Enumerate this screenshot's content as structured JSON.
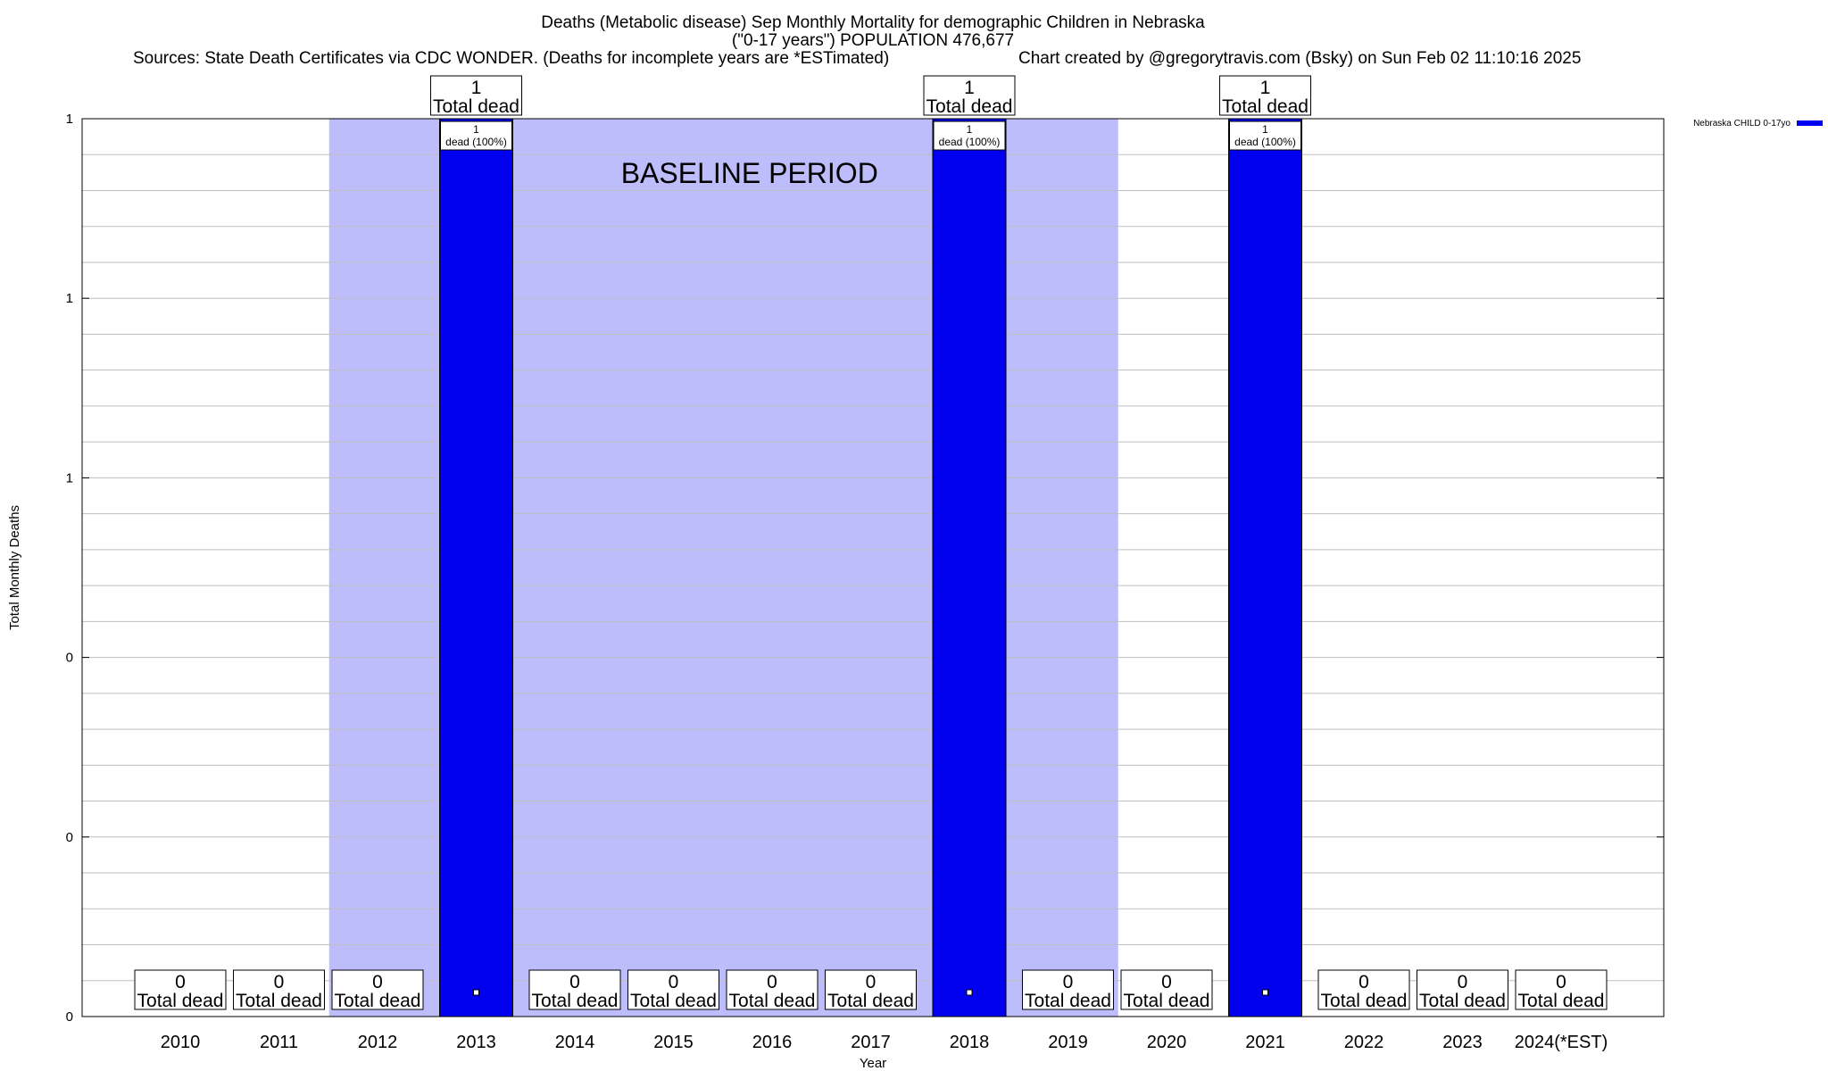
{
  "chart_data": {
    "type": "bar",
    "title_lines": [
      "Deaths (Metabolic disease) Sep Monthly Mortality for demographic Children in Nebraska",
      "(\"0-17 years\") POPULATION 476,677"
    ],
    "sources": "Sources: State Death Certificates via CDC WONDER. (Deaths for incomplete years are *ESTimated)",
    "credit": "Chart created by @gregorytravis.com (Bsky) on Sun Feb 02 11:10:16 2025",
    "xlabel": "Year",
    "ylabel": "Total Monthly Deaths",
    "categories": [
      "2010",
      "2011",
      "2012",
      "2013",
      "2014",
      "2015",
      "2016",
      "2017",
      "2018",
      "2019",
      "2020",
      "2021",
      "2022",
      "2023",
      "2024(*EST)"
    ],
    "series": [
      {
        "name": "Nebraska CHILD 0-17yo",
        "color": "#0000ee",
        "values": [
          0,
          0,
          0,
          1,
          0,
          0,
          0,
          0,
          1,
          0,
          0,
          1,
          0,
          0,
          0
        ]
      }
    ],
    "total_labels": [
      [
        "0",
        "Total dead"
      ],
      [
        "0",
        "Total dead"
      ],
      [
        "0",
        "Total dead"
      ],
      [
        "1",
        "Total dead"
      ],
      [
        "0",
        "Total dead"
      ],
      [
        "0",
        "Total dead"
      ],
      [
        "0",
        "Total dead"
      ],
      [
        "0",
        "Total dead"
      ],
      [
        "1",
        "Total dead"
      ],
      [
        "0",
        "Total dead"
      ],
      [
        "0",
        "Total dead"
      ],
      [
        "1",
        "Total dead"
      ],
      [
        "0",
        "Total dead"
      ],
      [
        "0",
        "Total dead"
      ],
      [
        "0",
        "Total dead"
      ]
    ],
    "bar_labels": [
      null,
      null,
      null,
      [
        "1",
        "dead (100%)"
      ],
      null,
      null,
      null,
      null,
      [
        "1",
        "dead (100%)"
      ],
      null,
      null,
      [
        "1",
        "dead (100%)"
      ],
      null,
      null,
      null
    ],
    "ylim": [
      0,
      1
    ],
    "yticks": [
      {
        "value": 0,
        "label": "0"
      },
      {
        "value": 0.2,
        "label": "0"
      },
      {
        "value": 0.4,
        "label": "0"
      },
      {
        "value": 0.6,
        "label": "1"
      },
      {
        "value": 0.8,
        "label": "1"
      },
      {
        "value": 1.0,
        "label": "1"
      }
    ],
    "grid": true,
    "baseline": {
      "label": "BASELINE PERIOD",
      "from": "2012",
      "to": "2019",
      "color": "#bdbdfb"
    },
    "legend_placement": "top-right"
  }
}
